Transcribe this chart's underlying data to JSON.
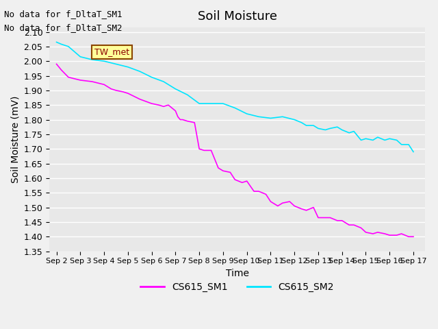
{
  "title": "Soil Moisture",
  "ylabel": "Soil Moisture (mV)",
  "xlabel": "Time",
  "ylim": [
    1.35,
    2.115
  ],
  "yticks": [
    1.35,
    1.4,
    1.45,
    1.5,
    1.55,
    1.6,
    1.65,
    1.7,
    1.75,
    1.8,
    1.85,
    1.9,
    1.95,
    2.0,
    2.05,
    2.1
  ],
  "bg_color": "#e8e8e8",
  "grid_color": "#ffffff",
  "text_no_data": [
    "No data for f_DltaT_SM1",
    "No data for f_DltaT_SM2"
  ],
  "tw_met_label": "TW_met",
  "tw_met_bg": "#ffff99",
  "tw_met_border": "#8b4500",
  "tw_met_text": "#8b0000",
  "legend_labels": [
    "CS615_SM1",
    "CS615_SM2"
  ],
  "line1_color": "#ff00ff",
  "line2_color": "#00e5ff",
  "x_tick_labels": [
    "Sep 2",
    "Sep 3",
    "Sep 4",
    "Sep 5",
    "Sep 6",
    "Sep 7",
    "Sep 8",
    "Sep 9",
    "Sep 10",
    "Sep 11",
    "Sep 12",
    "Sep 13",
    "Sep 14",
    "Sep 15",
    "Sep 16",
    "Sep 17"
  ],
  "sm1_x": [
    0,
    0.2,
    0.5,
    1.0,
    1.5,
    2.0,
    2.3,
    2.5,
    2.8,
    3.0,
    3.5,
    4.0,
    4.3,
    4.5,
    4.7,
    5.0,
    5.1,
    5.2,
    5.3,
    5.5,
    5.8,
    6.0,
    6.2,
    6.5,
    6.8,
    7.0,
    7.3,
    7.5,
    7.8,
    8.0,
    8.3,
    8.5,
    8.8,
    9.0,
    9.3,
    9.5,
    9.8,
    10.0,
    10.3,
    10.5,
    10.8,
    11.0,
    11.3,
    11.5,
    11.8,
    12.0,
    12.3,
    12.5,
    12.8,
    13.0,
    13.3,
    13.5,
    13.8,
    14.0,
    14.3,
    14.5,
    14.8,
    15.0
  ],
  "sm1_y": [
    1.99,
    1.97,
    1.945,
    1.935,
    1.93,
    1.92,
    1.905,
    1.9,
    1.895,
    1.89,
    1.87,
    1.855,
    1.85,
    1.845,
    1.85,
    1.83,
    1.81,
    1.8,
    1.8,
    1.795,
    1.79,
    1.7,
    1.695,
    1.695,
    1.635,
    1.625,
    1.62,
    1.595,
    1.585,
    1.59,
    1.555,
    1.555,
    1.545,
    1.52,
    1.505,
    1.515,
    1.52,
    1.505,
    1.495,
    1.49,
    1.5,
    1.465,
    1.465,
    1.465,
    1.455,
    1.455,
    1.44,
    1.44,
    1.43,
    1.415,
    1.41,
    1.415,
    1.41,
    1.405,
    1.405,
    1.41,
    1.4,
    1.4
  ],
  "sm2_x": [
    0,
    0.2,
    0.5,
    1.0,
    1.5,
    2.0,
    2.5,
    3.0,
    3.5,
    4.0,
    4.5,
    5.0,
    5.5,
    6.0,
    6.5,
    7.0,
    7.5,
    8.0,
    8.5,
    9.0,
    9.5,
    10.0,
    10.3,
    10.5,
    10.8,
    11.0,
    11.3,
    11.5,
    11.8,
    12.0,
    12.3,
    12.5,
    12.8,
    13.0,
    13.3,
    13.5,
    13.8,
    14.0,
    14.3,
    14.5,
    14.8,
    15.0
  ],
  "sm2_y": [
    2.065,
    2.058,
    2.05,
    2.015,
    2.005,
    2.0,
    1.99,
    1.98,
    1.965,
    1.945,
    1.93,
    1.905,
    1.885,
    1.855,
    1.855,
    1.855,
    1.84,
    1.82,
    1.81,
    1.805,
    1.81,
    1.8,
    1.79,
    1.78,
    1.78,
    1.77,
    1.765,
    1.77,
    1.775,
    1.765,
    1.755,
    1.76,
    1.73,
    1.735,
    1.73,
    1.74,
    1.73,
    1.735,
    1.73,
    1.715,
    1.715,
    1.69
  ]
}
